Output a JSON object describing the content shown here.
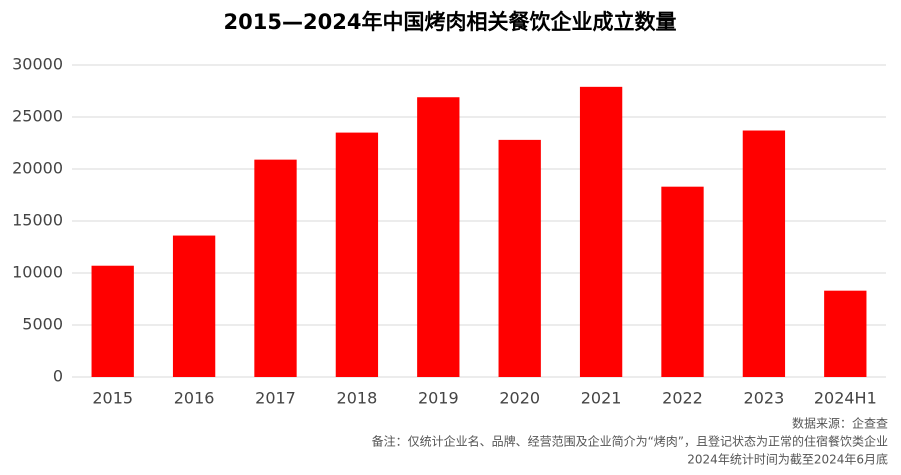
{
  "chart_data": {
    "type": "bar",
    "title": "2015—2024年中国烤肉相关餐饮企业成立数量",
    "categories": [
      "2015",
      "2016",
      "2017",
      "2018",
      "2019",
      "2020",
      "2021",
      "2022",
      "2023",
      "2024H1"
    ],
    "values": [
      10700,
      13600,
      20900,
      23500,
      26900,
      22800,
      27900,
      18300,
      23700,
      8300
    ],
    "color": "#ff0000",
    "ylim": [
      0,
      30000
    ],
    "yticks": [
      0,
      5000,
      10000,
      15000,
      20000,
      25000,
      30000
    ],
    "grid": true,
    "notes": [
      "数据来源：企查查",
      "备注：仅统计企业名、品牌、经营范围及企业简介为“烤肉”，且登记状态为正常的住宿餐饮类企业",
      "2024年统计时间为截至2024年6月底"
    ]
  }
}
